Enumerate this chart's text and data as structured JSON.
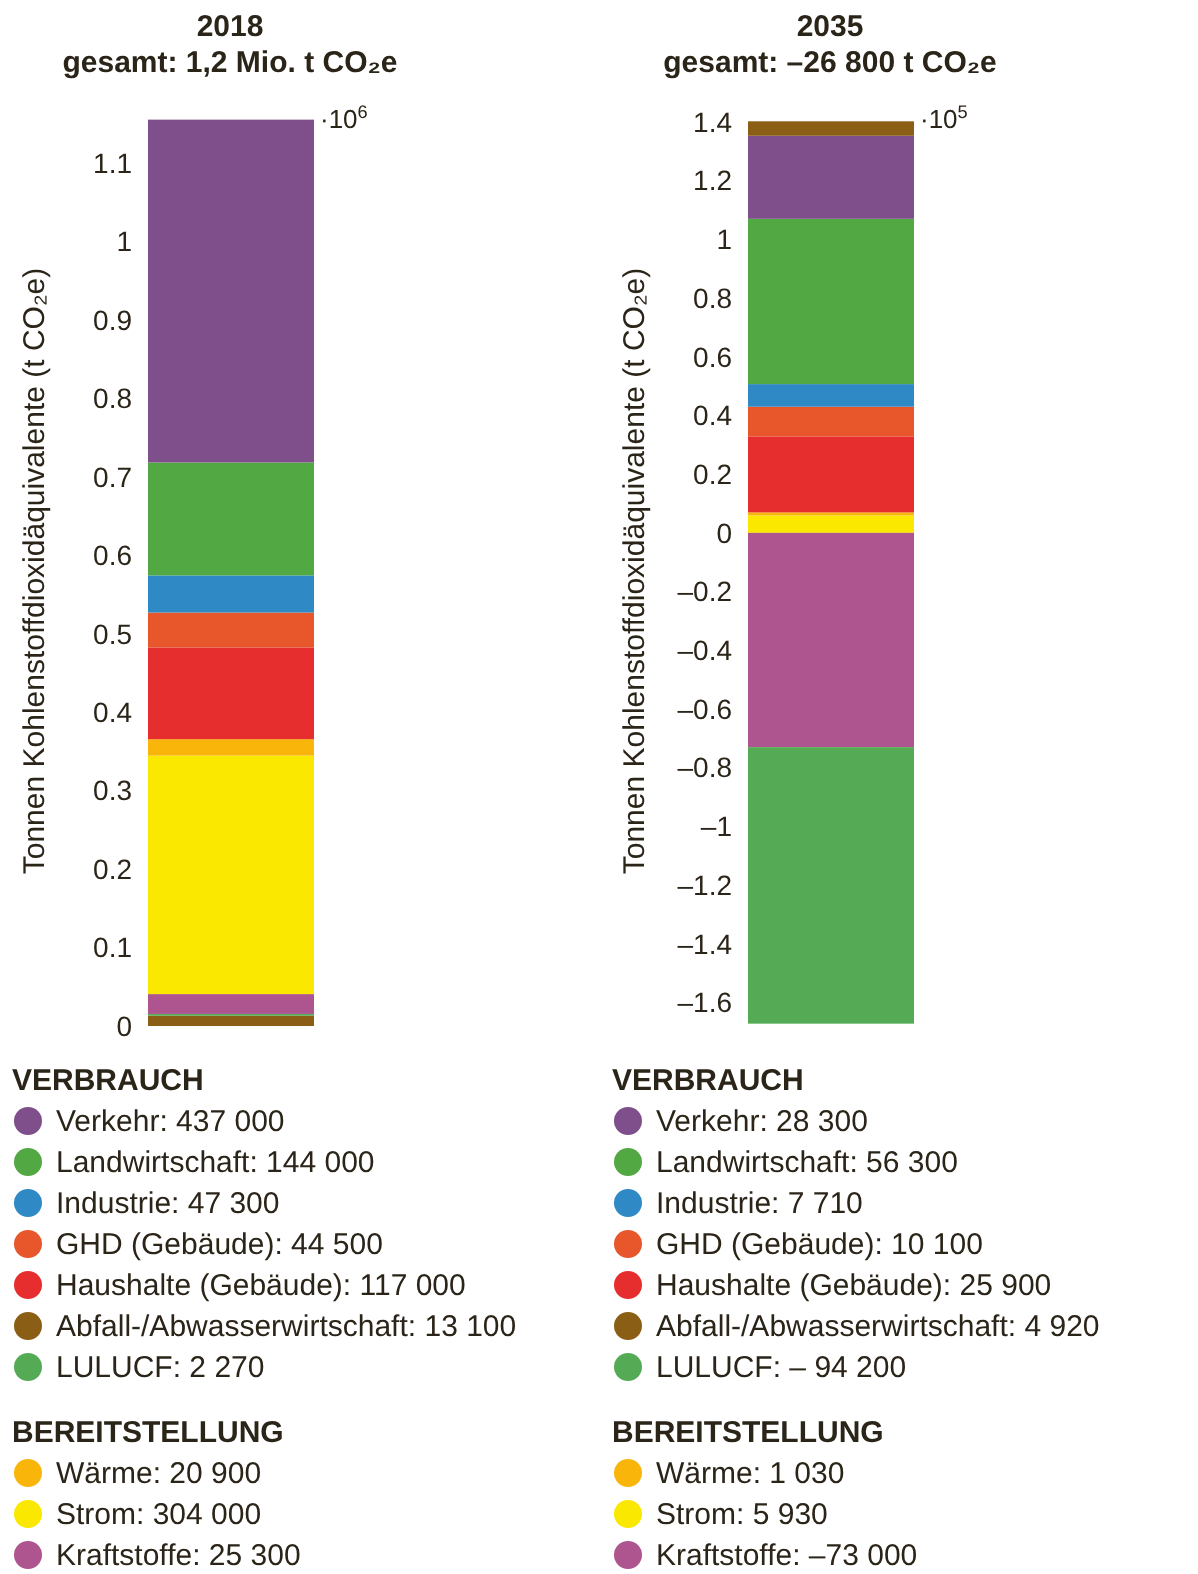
{
  "chart_data": [
    {
      "type": "bar",
      "title": "2018",
      "subtitle": "gesamt: 1,2 Mio. t CO₂e",
      "ylabel": "Tonnen Kohlenstoffdioxidäquivalente (t CO₂e)",
      "legend_title": "VERBRAUCH",
      "annotations": [
        "·10$^{6}$",
        "BEREITSTELLUNG"
      ],
      "stacked": true,
      "legend": "bottom",
      "categories": [
        null
      ],
      "ylim": [
        0,
        1.16
      ],
      "yticks": [
        0,
        0.1,
        0.2,
        0.3,
        0.4,
        0.5,
        0.6,
        0.7,
        0.8,
        0.9,
        1,
        1.1
      ],
      "series": [
        {
          "name": "Abfall-/Abwasserwirtschaft: 13 100",
          "color": "#8a5e14",
          "values": [
            0.0131
          ]
        },
        {
          "name": "LULUCF: 2 270",
          "color": "#55ab55",
          "values": [
            0.00227
          ]
        },
        {
          "name": "Kraftstoffe: 25 300",
          "color": "#ae548f",
          "values": [
            0.0253
          ]
        },
        {
          "name": "Strom: 304 000",
          "color": "#fbe800",
          "values": [
            0.304
          ]
        },
        {
          "name": "Wärme: 20 900",
          "color": "#f9b50a",
          "values": [
            0.0209
          ]
        },
        {
          "name": "Haushalte (Gebäude): 117 000",
          "color": "#e52e2d",
          "values": [
            0.117
          ]
        },
        {
          "name": "GHD (Gebäude): 44 500",
          "color": "#e8562c",
          "values": [
            0.0445
          ]
        },
        {
          "name": "Industrie: 47 300",
          "color": "#2f89c5",
          "values": [
            0.0473
          ]
        },
        {
          "name": "Landwirtschaft: 144 000",
          "color": "#52a843",
          "values": [
            0.144
          ]
        },
        {
          "name": "Verkehr: 437 000",
          "color": "#7f4f8b",
          "values": [
            0.437
          ]
        }
      ]
    },
    {
      "type": "bar",
      "title": "2035",
      "subtitle": "gesamt: –26 800 t CO₂e",
      "ylabel": "Tonnen Kohlenstoffdioxidäquivalente (t CO₂e)",
      "legend_title": "VERBRAUCH",
      "annotations": [
        "·10$^{5}$",
        "BEREITSTELLUNG"
      ],
      "stacked": true,
      "legend": "bottom",
      "categories": [
        null
      ],
      "ylim": [
        -1.68,
        1.42
      ],
      "yticks": [
        1.4,
        1.2,
        1,
        0.8,
        0.6,
        0.4,
        0.2,
        0,
        {
          "value": -0.2,
          "label": "–0.2"
        },
        {
          "value": -0.4,
          "label": "–0.4"
        },
        {
          "value": -0.6,
          "label": "–0.6"
        },
        {
          "value": -0.8,
          "label": "–0.8"
        },
        {
          "value": -1,
          "label": "–1"
        },
        {
          "value": -1.2,
          "label": "–1.2"
        },
        {
          "value": -1.4,
          "label": "–1.4"
        },
        {
          "value": -1.6,
          "label": "–1.6"
        }
      ],
      "series": [
        {
          "name": "Strom: 5 930",
          "color": "#fbe800",
          "values": [
            0.0593
          ]
        },
        {
          "name": "Wärme: 1 030",
          "color": "#f9b50a",
          "values": [
            0.0103
          ]
        },
        {
          "name": "Haushalte (Gebäude): 25 900",
          "color": "#e52e2d",
          "values": [
            0.259
          ]
        },
        {
          "name": "GHD (Gebäude): 10 100",
          "color": "#e8562c",
          "values": [
            0.101
          ]
        },
        {
          "name": "Industrie: 7 710",
          "color": "#2f89c5",
          "values": [
            0.0771
          ]
        },
        {
          "name": "Landwirtschaft: 56 300",
          "color": "#52a843",
          "values": [
            0.563
          ]
        },
        {
          "name": "Verkehr: 28 300",
          "color": "#7f4f8b",
          "values": [
            0.283
          ]
        },
        {
          "name": "Abfall-/Abwasserwirtschaft: 4 920",
          "color": "#8a5e14",
          "values": [
            0.0492
          ]
        },
        {
          "name": "Kraftstoffe: –73 000",
          "color": "#ae548f",
          "values": [
            -0.73
          ]
        },
        {
          "name": "LULUCF: – 94 200",
          "color": "#55ab55",
          "values": [
            -0.942
          ]
        }
      ]
    }
  ]
}
